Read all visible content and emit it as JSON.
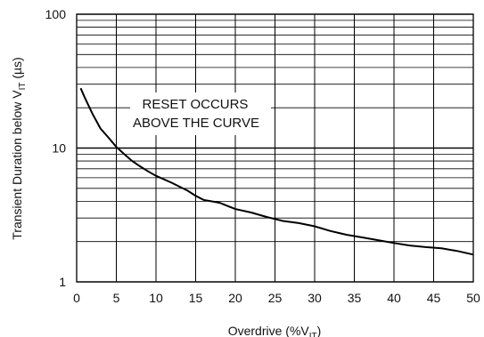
{
  "chart_data": {
    "type": "line",
    "title": "",
    "xlabel": "Overdrive (%V",
    "xlabel_sub": "IT",
    "xlabel_close": ")",
    "ylabel": "Transient Duration below V",
    "ylabel_sub": "IT",
    "ylabel_unit": " (µs)",
    "x_scale": "linear",
    "y_scale": "log",
    "xlim": [
      0,
      50
    ],
    "ylim": [
      1,
      100
    ],
    "x_ticks": [
      0,
      5,
      10,
      15,
      20,
      25,
      30,
      35,
      40,
      45,
      50
    ],
    "x_tick_labels": [
      "0",
      "5",
      "10",
      "15",
      "20",
      "25",
      "30",
      "35",
      "40",
      "45",
      "50"
    ],
    "y_ticks": [
      1,
      10,
      100
    ],
    "y_tick_labels": [
      "1",
      "10",
      "100"
    ],
    "grid": true,
    "annotation": [
      "RESET OCCURS",
      "ABOVE THE CURVE"
    ],
    "series": [
      {
        "color": "#000000",
        "x": [
          0.5,
          1,
          2,
          3,
          4,
          5,
          6,
          7,
          8,
          9,
          10,
          12,
          14,
          15,
          16,
          18,
          20,
          22,
          24,
          25,
          26,
          28,
          30,
          32,
          34,
          36,
          38,
          40,
          42,
          44,
          46,
          48,
          50
        ],
        "y": [
          28,
          24,
          18,
          14,
          12,
          10.2,
          9,
          8,
          7.3,
          6.7,
          6.2,
          5.5,
          4.8,
          4.4,
          4.1,
          3.9,
          3.5,
          3.3,
          3.05,
          2.95,
          2.85,
          2.75,
          2.6,
          2.4,
          2.25,
          2.15,
          2.05,
          1.95,
          1.87,
          1.82,
          1.78,
          1.7,
          1.6
        ]
      }
    ]
  }
}
